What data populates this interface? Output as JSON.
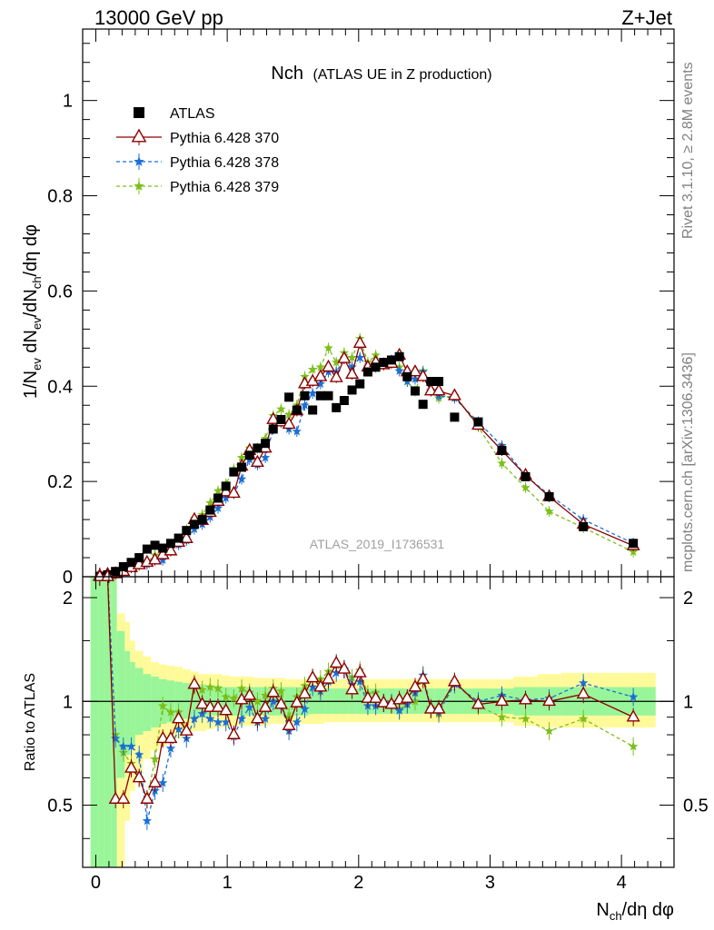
{
  "header": {
    "left": "13000 GeV pp",
    "right": "Z+Jet"
  },
  "side_labels": {
    "rivet": "Rivet 3.1.10, ≥ 2.8M events",
    "mcplots": "mcplots.cern.ch [arXiv:1306.3436]"
  },
  "watermark": "ATLAS_2019_I1736531",
  "chart_data": {
    "type": "scatter",
    "title": "Nch",
    "subtitle": "(ATLAS UE in Z production)",
    "ylabel_main": "1/N_ev dN_ev/dN_ch/dη dφ",
    "ylabel_ratio": "Ratio to ATLAS",
    "xlabel": "N_ch/dη dφ",
    "xlim": [
      -0.1,
      4.4
    ],
    "ylim_main": [
      0,
      1.15
    ],
    "ylim_ratio": [
      0.33,
      2.3
    ],
    "log_ratio": true,
    "xticks": [
      0,
      1,
      2,
      3,
      4
    ],
    "yticks_main": [
      0,
      0.2,
      0.4,
      0.6,
      0.8,
      1
    ],
    "ytick_labels_main": [
      "0",
      "0.2",
      "0.4",
      "0.6",
      "0.8",
      "1"
    ],
    "yticks_ratio": [
      0.5,
      1,
      2
    ],
    "ytick_labels_ratio": [
      "0.5",
      "1",
      "2"
    ],
    "legend_position": "top-left",
    "legend": [
      "ATLAS",
      "Pythia 6.428 370",
      "Pythia 6.428 378",
      "Pythia 6.428 379"
    ],
    "colors": {
      "data": "#000000",
      "p370": "#8b0000",
      "p378": "#1a6fd6",
      "p379": "#7cbf1a",
      "band_inner": "#99f599",
      "band_outer": "#fffa99"
    },
    "x": [
      0.03,
      0.09,
      0.15,
      0.21,
      0.27,
      0.33,
      0.39,
      0.45,
      0.51,
      0.57,
      0.63,
      0.69,
      0.75,
      0.81,
      0.87,
      0.93,
      0.99,
      1.05,
      1.11,
      1.17,
      1.23,
      1.29,
      1.35,
      1.41,
      1.47,
      1.53,
      1.59,
      1.65,
      1.71,
      1.77,
      1.83,
      1.89,
      1.95,
      2.01,
      2.07,
      2.13,
      2.19,
      2.25,
      2.31,
      2.37,
      2.43,
      2.49,
      2.55,
      2.61,
      2.73,
      2.91,
      3.09,
      3.27,
      3.45,
      3.71,
      4.09
    ],
    "series": [
      {
        "name": "ATLAS",
        "values": [
          0.001,
          0.004,
          0.011,
          0.021,
          0.03,
          0.04,
          0.058,
          0.066,
          0.06,
          0.07,
          0.081,
          0.097,
          0.11,
          0.12,
          0.14,
          0.165,
          0.19,
          0.22,
          0.23,
          0.255,
          0.27,
          0.28,
          0.31,
          0.33,
          0.377,
          0.35,
          0.38,
          0.35,
          0.38,
          0.38,
          0.355,
          0.37,
          0.392,
          0.405,
          0.43,
          0.44,
          0.45,
          0.455,
          0.462,
          0.42,
          0.39,
          0.362,
          0.41,
          0.41,
          0.335,
          0.325,
          0.265,
          0.21,
          0.168,
          0.105,
          0.07
        ]
      },
      {
        "name": "Pythia 6.428 370",
        "values": [
          0.002,
          0.005,
          0.006,
          0.011,
          0.019,
          0.025,
          0.03,
          0.035,
          0.046,
          0.054,
          0.072,
          0.08,
          0.12,
          0.118,
          0.135,
          0.158,
          0.178,
          0.175,
          0.232,
          0.265,
          0.24,
          0.27,
          0.33,
          0.325,
          0.32,
          0.348,
          0.405,
          0.41,
          0.42,
          0.44,
          0.418,
          0.458,
          0.425,
          0.49,
          0.44,
          0.45,
          0.445,
          0.448,
          0.465,
          0.43,
          0.43,
          0.42,
          0.39,
          0.39,
          0.38,
          0.318,
          0.265,
          0.213,
          0.168,
          0.11,
          0.065
        ]
      },
      {
        "name": "Pythia 6.428 378",
        "values": [
          0.002,
          0.005,
          0.008,
          0.015,
          0.022,
          0.029,
          0.026,
          0.035,
          0.035,
          0.063,
          0.067,
          0.076,
          0.1,
          0.11,
          0.125,
          0.144,
          0.165,
          0.175,
          0.205,
          0.246,
          0.235,
          0.25,
          0.31,
          0.325,
          0.31,
          0.305,
          0.36,
          0.385,
          0.405,
          0.43,
          0.43,
          0.458,
          0.44,
          0.46,
          0.44,
          0.44,
          0.445,
          0.455,
          0.432,
          0.41,
          0.415,
          0.43,
          0.39,
          0.38,
          0.375,
          0.325,
          0.275,
          0.212,
          0.172,
          0.12,
          0.07
        ]
      },
      {
        "name": "Pythia 6.428 379",
        "values": [
          0.002,
          0.005,
          0.009,
          0.015,
          0.02,
          0.024,
          0.03,
          0.045,
          0.058,
          0.065,
          0.075,
          0.099,
          0.122,
          0.13,
          0.155,
          0.18,
          0.195,
          0.226,
          0.25,
          0.27,
          0.27,
          0.29,
          0.338,
          0.352,
          0.34,
          0.36,
          0.42,
          0.435,
          0.44,
          0.48,
          0.45,
          0.47,
          0.46,
          0.5,
          0.45,
          0.465,
          0.445,
          0.45,
          0.44,
          0.41,
          0.39,
          0.432,
          0.392,
          0.375,
          0.38,
          0.315,
          0.238,
          0.187,
          0.137,
          0.103,
          0.052
        ]
      }
    ],
    "ratio": {
      "x": [
        0.03,
        0.09,
        0.15,
        0.21,
        0.27,
        0.33,
        0.39,
        0.45,
        0.51,
        0.57,
        0.63,
        0.69,
        0.75,
        0.81,
        0.87,
        0.93,
        0.99,
        1.05,
        1.11,
        1.17,
        1.23,
        1.29,
        1.35,
        1.41,
        1.47,
        1.53,
        1.59,
        1.65,
        1.71,
        1.77,
        1.83,
        1.89,
        1.95,
        2.01,
        2.07,
        2.13,
        2.19,
        2.25,
        2.31,
        2.37,
        2.43,
        2.49,
        2.55,
        2.61,
        2.73,
        2.91,
        3.09,
        3.27,
        3.45,
        3.71,
        4.09
      ],
      "p370": [
        2.3,
        2.3,
        0.52,
        0.52,
        0.64,
        0.6,
        0.52,
        0.58,
        0.78,
        0.78,
        0.89,
        0.82,
        1.12,
        0.98,
        0.96,
        0.96,
        0.94,
        0.8,
        1.01,
        1.04,
        0.89,
        0.96,
        1.06,
        0.98,
        0.85,
        0.99,
        1.05,
        1.17,
        1.1,
        1.16,
        1.29,
        1.24,
        1.08,
        1.21,
        1.02,
        1.02,
        0.99,
        0.98,
        1.01,
        1.02,
        1.1,
        1.16,
        0.95,
        0.95,
        1.14,
        0.98,
        1.0,
        1.01,
        1.0,
        1.05,
        0.9
      ],
      "p378": [
        2.3,
        2.3,
        0.78,
        0.74,
        0.74,
        0.7,
        0.45,
        0.55,
        0.58,
        0.73,
        0.83,
        0.78,
        0.89,
        0.92,
        0.89,
        0.87,
        0.87,
        0.79,
        0.89,
        0.96,
        0.87,
        0.89,
        1.0,
        0.98,
        0.82,
        0.87,
        0.95,
        1.1,
        1.07,
        1.14,
        1.21,
        1.24,
        1.12,
        1.14,
        0.97,
        0.97,
        0.99,
        0.99,
        0.94,
        0.98,
        1.06,
        1.19,
        0.95,
        0.93,
        1.12,
        1.0,
        1.04,
        1.01,
        1.02,
        1.13,
        1.03
      ],
      "p379": [
        2.3,
        2.3,
        0.8,
        0.71,
        0.66,
        0.6,
        0.52,
        0.68,
        0.97,
        0.93,
        0.93,
        0.82,
        1.11,
        1.08,
        1.1,
        1.09,
        1.03,
        1.02,
        1.09,
        1.06,
        1.0,
        1.04,
        1.09,
        1.07,
        0.9,
        1.03,
        1.11,
        1.17,
        1.16,
        1.22,
        1.27,
        1.24,
        1.17,
        1.23,
        1.05,
        1.06,
        0.99,
        0.99,
        0.95,
        0.98,
        1.0,
        1.19,
        0.96,
        0.92,
        1.14,
        0.97,
        0.9,
        0.89,
        0.82,
        0.89,
        0.74
      ],
      "band_edges": [
        -0.04,
        0.02,
        0.06,
        0.12,
        0.16,
        0.22,
        0.26,
        0.3,
        0.36,
        0.42,
        0.48,
        0.54,
        0.6,
        0.66,
        0.72,
        0.78,
        0.84,
        0.9,
        0.96,
        1.02,
        1.08,
        1.14,
        1.2,
        1.26,
        1.32,
        1.38,
        1.44,
        1.5,
        1.56,
        1.62,
        1.68,
        1.74,
        1.8,
        1.86,
        1.92,
        1.98,
        2.04,
        2.1,
        2.16,
        2.22,
        2.28,
        2.34,
        2.4,
        2.46,
        2.52,
        2.58,
        2.66,
        2.8,
        3.0,
        3.18,
        3.36,
        3.54,
        4.26
      ],
      "band_inner": [
        [
          0.3,
          2.3
        ],
        [
          0.3,
          2.3
        ],
        [
          0.3,
          2.3
        ],
        [
          0.3,
          2.3
        ],
        [
          0.6,
          1.6
        ],
        [
          0.7,
          1.4
        ],
        [
          0.75,
          1.3
        ],
        [
          0.8,
          1.25
        ],
        [
          0.82,
          1.2
        ],
        [
          0.84,
          1.18
        ],
        [
          0.86,
          1.16
        ],
        [
          0.87,
          1.15
        ],
        [
          0.88,
          1.14
        ],
        [
          0.89,
          1.13
        ],
        [
          0.9,
          1.12
        ],
        [
          0.9,
          1.12
        ],
        [
          0.91,
          1.11
        ],
        [
          0.91,
          1.11
        ],
        [
          0.91,
          1.1
        ],
        [
          0.91,
          1.1
        ],
        [
          0.91,
          1.1
        ],
        [
          0.91,
          1.1
        ],
        [
          0.91,
          1.1
        ],
        [
          0.91,
          1.1
        ],
        [
          0.91,
          1.1
        ],
        [
          0.91,
          1.1
        ],
        [
          0.91,
          1.1
        ],
        [
          0.91,
          1.1
        ],
        [
          0.91,
          1.1
        ],
        [
          0.92,
          1.09
        ],
        [
          0.92,
          1.09
        ],
        [
          0.92,
          1.09
        ],
        [
          0.92,
          1.09
        ],
        [
          0.92,
          1.09
        ],
        [
          0.92,
          1.09
        ],
        [
          0.92,
          1.09
        ],
        [
          0.92,
          1.09
        ],
        [
          0.92,
          1.09
        ],
        [
          0.92,
          1.09
        ],
        [
          0.92,
          1.09
        ],
        [
          0.92,
          1.09
        ],
        [
          0.92,
          1.09
        ],
        [
          0.92,
          1.09
        ],
        [
          0.92,
          1.09
        ],
        [
          0.92,
          1.09
        ],
        [
          0.92,
          1.09
        ],
        [
          0.92,
          1.09
        ],
        [
          0.92,
          1.09
        ],
        [
          0.92,
          1.09
        ],
        [
          0.91,
          1.1
        ],
        [
          0.91,
          1.1
        ],
        [
          0.91,
          1.1
        ]
      ],
      "band_outer": [
        [
          0.3,
          2.3
        ],
        [
          0.3,
          2.3
        ],
        [
          0.3,
          2.3
        ],
        [
          0.3,
          2.3
        ],
        [
          0.3,
          1.8
        ],
        [
          0.45,
          1.7
        ],
        [
          0.55,
          1.5
        ],
        [
          0.62,
          1.4
        ],
        [
          0.68,
          1.35
        ],
        [
          0.72,
          1.3
        ],
        [
          0.74,
          1.28
        ],
        [
          0.76,
          1.27
        ],
        [
          0.78,
          1.26
        ],
        [
          0.8,
          1.24
        ],
        [
          0.82,
          1.22
        ],
        [
          0.82,
          1.2
        ],
        [
          0.83,
          1.2
        ],
        [
          0.84,
          1.2
        ],
        [
          0.84,
          1.19
        ],
        [
          0.85,
          1.18
        ],
        [
          0.85,
          1.18
        ],
        [
          0.85,
          1.18
        ],
        [
          0.85,
          1.17
        ],
        [
          0.85,
          1.17
        ],
        [
          0.86,
          1.17
        ],
        [
          0.86,
          1.17
        ],
        [
          0.86,
          1.16
        ],
        [
          0.86,
          1.16
        ],
        [
          0.86,
          1.16
        ],
        [
          0.86,
          1.16
        ],
        [
          0.86,
          1.16
        ],
        [
          0.87,
          1.16
        ],
        [
          0.87,
          1.16
        ],
        [
          0.87,
          1.16
        ],
        [
          0.87,
          1.16
        ],
        [
          0.87,
          1.16
        ],
        [
          0.87,
          1.16
        ],
        [
          0.87,
          1.16
        ],
        [
          0.87,
          1.16
        ],
        [
          0.87,
          1.16
        ],
        [
          0.87,
          1.16
        ],
        [
          0.87,
          1.16
        ],
        [
          0.87,
          1.16
        ],
        [
          0.87,
          1.16
        ],
        [
          0.87,
          1.16
        ],
        [
          0.87,
          1.16
        ],
        [
          0.87,
          1.16
        ],
        [
          0.87,
          1.16
        ],
        [
          0.87,
          1.16
        ],
        [
          0.85,
          1.18
        ],
        [
          0.84,
          1.2
        ],
        [
          0.84,
          1.21
        ]
      ]
    }
  }
}
